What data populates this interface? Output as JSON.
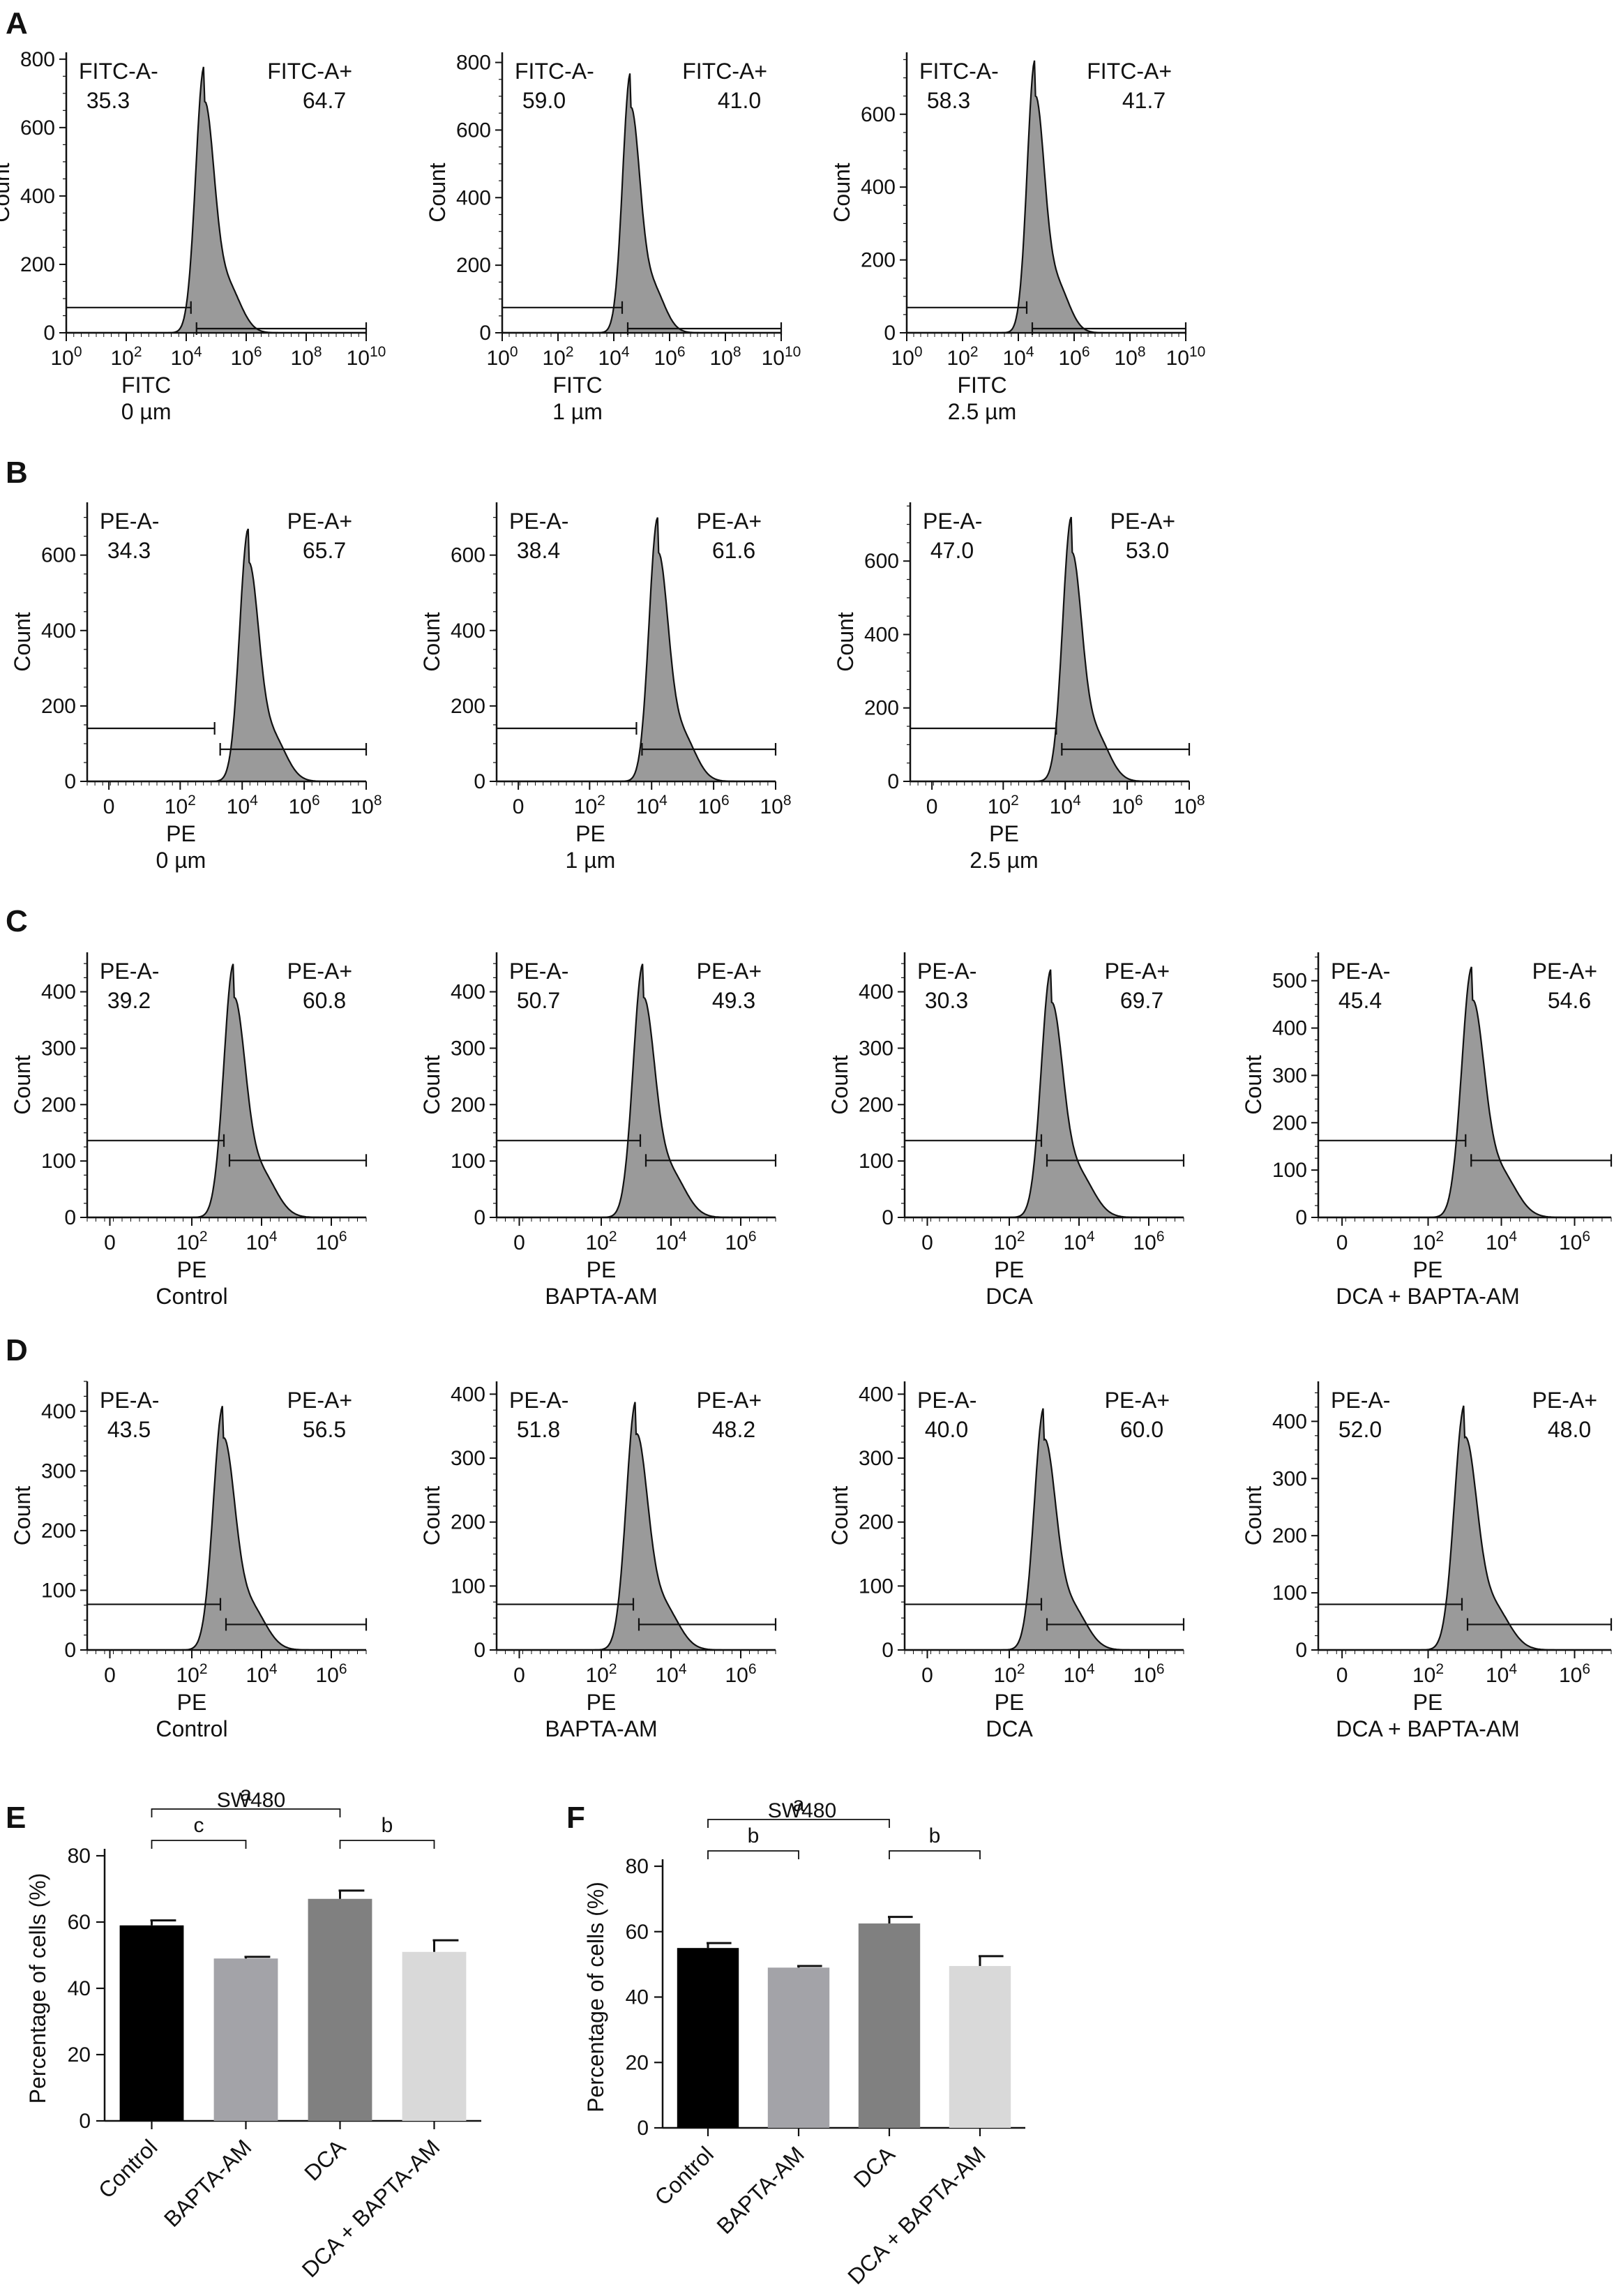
{
  "chart_data": [
    {
      "panel": "A",
      "type": "histogram",
      "xlabel": "FITC",
      "condition": "0 µm",
      "ylabel": "Count",
      "yticks": [
        0,
        200,
        400,
        600,
        800
      ],
      "ymax": 820,
      "xticks": [
        "10^0",
        "10^2",
        "10^4",
        "10^6",
        "10^8",
        "10^10"
      ],
      "xmin_exp": 0,
      "xmax_exp": 10,
      "peak_exp": 4.6,
      "peak_count": 780,
      "gate_neg": "FITC-A-",
      "gate_neg_value": "35.3",
      "gate_pos": "FITC-A+",
      "gate_pos_value": "64.7",
      "gate_split_exp": 4.25
    },
    {
      "panel": "A",
      "type": "histogram",
      "xlabel": "FITC",
      "condition": "1 µm",
      "ylabel": "Count",
      "yticks": [
        0,
        200,
        400,
        600,
        800
      ],
      "ymax": 830,
      "xticks": [
        "10^0",
        "10^2",
        "10^4",
        "10^6",
        "10^8",
        "10^10"
      ],
      "xmin_exp": 0,
      "xmax_exp": 10,
      "peak_exp": 4.6,
      "peak_count": 770,
      "gate_neg": "FITC-A-",
      "gate_neg_value": "59.0",
      "gate_pos": "FITC-A+",
      "gate_pos_value": "41.0",
      "gate_split_exp": 4.4
    },
    {
      "panel": "A",
      "type": "histogram",
      "xlabel": "FITC",
      "condition": "2.5 µm",
      "ylabel": "Count",
      "yticks": [
        0,
        200,
        400,
        600
      ],
      "ymax": 770,
      "xticks": [
        "10^0",
        "10^2",
        "10^4",
        "10^6",
        "10^8",
        "10^10"
      ],
      "xmin_exp": 0,
      "xmax_exp": 10,
      "peak_exp": 4.6,
      "peak_count": 750,
      "gate_neg": "FITC-A-",
      "gate_neg_value": "58.3",
      "gate_pos": "FITC-A+",
      "gate_pos_value": "41.7",
      "gate_split_exp": 4.4
    },
    {
      "panel": "B",
      "type": "histogram",
      "xlabel": "PE",
      "condition": "0 µm",
      "ylabel": "Count",
      "yticks": [
        0,
        200,
        400,
        600
      ],
      "ymax": 740,
      "xticks": [
        "0",
        "10^2",
        "10^4",
        "10^6",
        "10^8"
      ],
      "xmin_exp": -1,
      "xmax_exp": 8,
      "peak_exp": 4.2,
      "peak_count": 670,
      "gate_neg": "PE-A-",
      "gate_neg_value": "34.3",
      "gate_pos": "PE-A+",
      "gate_pos_value": "65.7",
      "gate_split_exp": 3.2
    },
    {
      "panel": "B",
      "type": "histogram",
      "xlabel": "PE",
      "condition": "1 µm",
      "ylabel": "Count",
      "yticks": [
        0,
        200,
        400,
        600
      ],
      "ymax": 740,
      "xticks": [
        "0",
        "10^2",
        "10^4",
        "10^6",
        "10^8"
      ],
      "xmin_exp": -1,
      "xmax_exp": 8,
      "peak_exp": 4.2,
      "peak_count": 700,
      "gate_neg": "PE-A-",
      "gate_neg_value": "38.4",
      "gate_pos": "PE-A+",
      "gate_pos_value": "61.6",
      "gate_split_exp": 3.6
    },
    {
      "panel": "B",
      "type": "histogram",
      "xlabel": "PE",
      "condition": "2.5 µm",
      "ylabel": "Count",
      "yticks": [
        0,
        200,
        400,
        600
      ],
      "ymax": 760,
      "xticks": [
        "0",
        "10^2",
        "10^4",
        "10^6",
        "10^8"
      ],
      "xmin_exp": -1,
      "xmax_exp": 8,
      "peak_exp": 4.2,
      "peak_count": 720,
      "gate_neg": "PE-A-",
      "gate_neg_value": "47.0",
      "gate_pos": "PE-A+",
      "gate_pos_value": "53.0",
      "gate_split_exp": 3.8
    },
    {
      "panel": "C",
      "type": "histogram",
      "xlabel": "PE",
      "condition": "Control",
      "ylabel": "Count",
      "yticks": [
        0,
        100,
        200,
        300,
        400
      ],
      "ymax": 470,
      "xticks": [
        "0",
        "10^2",
        "10^4",
        "10^6"
      ],
      "xmin_exp": -1,
      "xmax_exp": 7,
      "peak_exp": 3.2,
      "peak_count": 450,
      "gate_neg": "PE-A-",
      "gate_neg_value": "39.2",
      "gate_pos": "PE-A+",
      "gate_pos_value": "60.8",
      "gate_split_exp": 3.0
    },
    {
      "panel": "C",
      "type": "histogram",
      "xlabel": "PE",
      "condition": "BAPTA-AM",
      "ylabel": "Count",
      "yticks": [
        0,
        100,
        200,
        300,
        400
      ],
      "ymax": 470,
      "xticks": [
        "0",
        "10^2",
        "10^4",
        "10^6"
      ],
      "xmin_exp": -1,
      "xmax_exp": 7,
      "peak_exp": 3.2,
      "peak_count": 450,
      "gate_neg": "PE-A-",
      "gate_neg_value": "50.7",
      "gate_pos": "PE-A+",
      "gate_pos_value": "49.3",
      "gate_split_exp": 3.2
    },
    {
      "panel": "C",
      "type": "histogram",
      "xlabel": "PE",
      "condition": "DCA",
      "ylabel": "Count",
      "yticks": [
        0,
        100,
        200,
        300,
        400
      ],
      "ymax": 470,
      "xticks": [
        "0",
        "10^2",
        "10^4",
        "10^6"
      ],
      "xmin_exp": -1,
      "xmax_exp": 7,
      "peak_exp": 3.2,
      "peak_count": 440,
      "gate_neg": "PE-A-",
      "gate_neg_value": "30.3",
      "gate_pos": "PE-A+",
      "gate_pos_value": "69.7",
      "gate_split_exp": 3.0
    },
    {
      "panel": "C",
      "type": "histogram",
      "xlabel": "PE",
      "condition": "DCA + BAPTA-AM",
      "ylabel": "Count",
      "yticks": [
        0,
        100,
        200,
        300,
        400,
        500
      ],
      "ymax": 560,
      "xticks": [
        "0",
        "10^2",
        "10^4",
        "10^6"
      ],
      "xmin_exp": -1,
      "xmax_exp": 7,
      "peak_exp": 3.2,
      "peak_count": 530,
      "gate_neg": "PE-A-",
      "gate_neg_value": "45.4",
      "gate_pos": "PE-A+",
      "gate_pos_value": "54.6",
      "gate_split_exp": 3.1
    },
    {
      "panel": "D",
      "type": "histogram",
      "xlabel": "PE",
      "condition": "Control",
      "ylabel": "Count",
      "yticks": [
        0,
        100,
        200,
        300,
        400
      ],
      "ymax": 450,
      "xticks": [
        "0",
        "10^2",
        "10^4",
        "10^6"
      ],
      "xmin_exp": -1,
      "xmax_exp": 7,
      "peak_exp": 2.9,
      "peak_count": 410,
      "gate_neg": "PE-A-",
      "gate_neg_value": "43.5",
      "gate_pos": "PE-A+",
      "gate_pos_value": "56.5",
      "gate_split_exp": 2.9
    },
    {
      "panel": "D",
      "type": "histogram",
      "xlabel": "PE",
      "condition": "BAPTA-AM",
      "ylabel": "Count",
      "yticks": [
        0,
        100,
        200,
        300,
        400
      ],
      "ymax": 420,
      "xticks": [
        "0",
        "10^2",
        "10^4",
        "10^6"
      ],
      "xmin_exp": -1,
      "xmax_exp": 7,
      "peak_exp": 3.0,
      "peak_count": 390,
      "gate_neg": "PE-A-",
      "gate_neg_value": "51.8",
      "gate_pos": "PE-A+",
      "gate_pos_value": "48.2",
      "gate_split_exp": 3.0
    },
    {
      "panel": "D",
      "type": "histogram",
      "xlabel": "PE",
      "condition": "DCA",
      "ylabel": "Count",
      "yticks": [
        0,
        100,
        200,
        300,
        400
      ],
      "ymax": 420,
      "xticks": [
        "0",
        "10^2",
        "10^4",
        "10^6"
      ],
      "xmin_exp": -1,
      "xmax_exp": 7,
      "peak_exp": 3.0,
      "peak_count": 380,
      "gate_neg": "PE-A-",
      "gate_neg_value": "40.0",
      "gate_pos": "PE-A+",
      "gate_pos_value": "60.0",
      "gate_split_exp": 3.0
    },
    {
      "panel": "D",
      "type": "histogram",
      "xlabel": "PE",
      "condition": "DCA + BAPTA-AM",
      "ylabel": "Count",
      "yticks": [
        0,
        100,
        200,
        300,
        400
      ],
      "ymax": 470,
      "xticks": [
        "0",
        "10^2",
        "10^4",
        "10^6"
      ],
      "xmin_exp": -1,
      "xmax_exp": 7,
      "peak_exp": 3.0,
      "peak_count": 430,
      "gate_neg": "PE-A-",
      "gate_neg_value": "52.0",
      "gate_pos": "PE-A+",
      "gate_pos_value": "48.0",
      "gate_split_exp": 3.0
    },
    {
      "panel": "E",
      "type": "bar",
      "title": "SW480",
      "ylabel": "Percentage of cells (%)",
      "categories": [
        "Control",
        "BAPTA-AM",
        "DCA",
        "DCA + BAPTA-AM"
      ],
      "values": [
        59,
        49,
        67,
        51
      ],
      "errors": [
        1.5,
        0.5,
        2.5,
        3.5
      ],
      "colors": [
        "#000000",
        "#a3a3a8",
        "#808080",
        "#d9d9d9"
      ],
      "ylim": [
        0,
        80
      ],
      "yticks": [
        0,
        20,
        40,
        60,
        80
      ],
      "significance": [
        {
          "from": 0,
          "to": 2,
          "label": "a",
          "level": 2
        },
        {
          "from": 0,
          "to": 1,
          "label": "c",
          "level": 1
        },
        {
          "from": 2,
          "to": 3,
          "label": "b",
          "level": 1
        }
      ]
    },
    {
      "panel": "F",
      "type": "bar",
      "title": "SW480",
      "ylabel": "Percentage of cells (%)",
      "categories": [
        "Control",
        "BAPTA-AM",
        "DCA",
        "DCA + BAPTA-AM"
      ],
      "values": [
        55,
        49,
        62.5,
        49.5
      ],
      "errors": [
        1.5,
        0.5,
        2.0,
        3.0
      ],
      "colors": [
        "#000000",
        "#a3a3a8",
        "#808080",
        "#d9d9d9"
      ],
      "ylim": [
        0,
        80
      ],
      "yticks": [
        0,
        20,
        40,
        60,
        80
      ],
      "significance": [
        {
          "from": 0,
          "to": 2,
          "label": "a",
          "level": 2
        },
        {
          "from": 0,
          "to": 1,
          "label": "b",
          "level": 1
        },
        {
          "from": 2,
          "to": 3,
          "label": "b",
          "level": 1
        }
      ]
    }
  ],
  "panel_letters": [
    "A",
    "B",
    "C",
    "D",
    "E",
    "F"
  ]
}
